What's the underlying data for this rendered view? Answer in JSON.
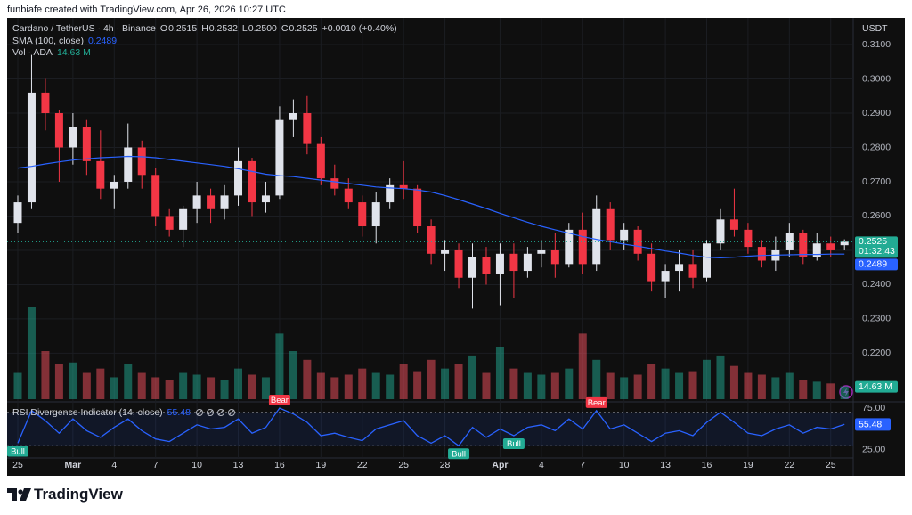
{
  "header": {
    "credit": "funbiafe created with TradingView.com, Apr 26, 2026 10:27 UTC"
  },
  "footer": {
    "brand": "TradingView"
  },
  "chart_data": [
    {
      "type": "candlestick",
      "title": "Cardano / TetherUS · 4h · Binance",
      "legend": [
        {
          "key": "O",
          "value": "0.2515"
        },
        {
          "key": "H",
          "value": "0.2532"
        },
        {
          "key": "L",
          "value": "0.2500"
        },
        {
          "key": "C",
          "value": "0.2525"
        }
      ],
      "change": "+0.0010 (+0.40%)",
      "currency": "USDT",
      "categories": [
        "25",
        null,
        null,
        null,
        "Mar",
        null,
        null,
        "4",
        null,
        null,
        "7",
        null,
        null,
        "10",
        null,
        null,
        "13",
        null,
        null,
        "16",
        null,
        null,
        "19",
        null,
        null,
        "22",
        null,
        null,
        "25",
        null,
        null,
        "28",
        null,
        null,
        null,
        "Apr",
        null,
        null,
        "4",
        null,
        null,
        "7",
        null,
        null,
        "10",
        null,
        null,
        "13",
        null,
        null,
        "16",
        null,
        null,
        "19",
        null,
        null,
        "22",
        null,
        null,
        "25",
        null
      ],
      "open": [
        0.258,
        0.264,
        0.296,
        0.29,
        0.28,
        0.286,
        0.276,
        0.268,
        0.27,
        0.28,
        0.272,
        0.26,
        0.256,
        0.262,
        0.266,
        0.262,
        0.266,
        0.276,
        0.264,
        0.266,
        0.288,
        0.29,
        0.281,
        0.271,
        0.268,
        0.264,
        0.257,
        0.264,
        0.269,
        0.268,
        0.257,
        0.249,
        0.25,
        0.242,
        0.248,
        0.243,
        0.249,
        0.244,
        0.249,
        0.25,
        0.246,
        0.256,
        0.246,
        0.262,
        0.253,
        0.256,
        0.249,
        0.241,
        0.244,
        0.246,
        0.242,
        0.252,
        0.259,
        0.256,
        0.251,
        0.247,
        0.25,
        0.255,
        0.248,
        0.252,
        0.2515
      ],
      "high": [
        0.266,
        0.307,
        0.3,
        0.291,
        0.29,
        0.288,
        0.285,
        0.272,
        0.287,
        0.282,
        0.274,
        0.262,
        0.263,
        0.27,
        0.268,
        0.269,
        0.28,
        0.277,
        0.27,
        0.292,
        0.294,
        0.295,
        0.283,
        0.275,
        0.271,
        0.266,
        0.267,
        0.271,
        0.276,
        0.269,
        0.259,
        0.253,
        0.252,
        0.252,
        0.251,
        0.252,
        0.252,
        0.251,
        0.253,
        0.255,
        0.258,
        0.261,
        0.266,
        0.264,
        0.258,
        0.257,
        0.252,
        0.246,
        0.25,
        0.25,
        0.253,
        0.262,
        0.268,
        0.258,
        0.253,
        0.254,
        0.258,
        0.256,
        0.255,
        0.254,
        0.2532
      ],
      "low": [
        0.255,
        0.262,
        0.285,
        0.27,
        0.275,
        0.272,
        0.265,
        0.262,
        0.268,
        0.268,
        0.257,
        0.254,
        0.251,
        0.258,
        0.258,
        0.259,
        0.263,
        0.26,
        0.261,
        0.265,
        0.283,
        0.278,
        0.269,
        0.266,
        0.262,
        0.254,
        0.252,
        0.262,
        0.265,
        0.255,
        0.246,
        0.244,
        0.239,
        0.233,
        0.24,
        0.234,
        0.236,
        0.242,
        0.245,
        0.242,
        0.245,
        0.243,
        0.244,
        0.25,
        0.25,
        0.247,
        0.238,
        0.236,
        0.238,
        0.239,
        0.241,
        0.25,
        0.254,
        0.249,
        0.245,
        0.244,
        0.248,
        0.246,
        0.247,
        0.248,
        0.25
      ],
      "close": [
        0.264,
        0.296,
        0.29,
        0.28,
        0.286,
        0.276,
        0.268,
        0.27,
        0.28,
        0.272,
        0.26,
        0.256,
        0.262,
        0.266,
        0.262,
        0.266,
        0.276,
        0.264,
        0.266,
        0.288,
        0.29,
        0.281,
        0.271,
        0.268,
        0.264,
        0.257,
        0.264,
        0.269,
        0.268,
        0.257,
        0.249,
        0.25,
        0.242,
        0.248,
        0.243,
        0.249,
        0.244,
        0.249,
        0.25,
        0.246,
        0.256,
        0.246,
        0.262,
        0.253,
        0.256,
        0.249,
        0.241,
        0.244,
        0.246,
        0.242,
        0.252,
        0.259,
        0.256,
        0.251,
        0.247,
        0.25,
        0.255,
        0.248,
        0.252,
        0.25,
        0.2525
      ],
      "up_color": "#e0e3eb",
      "down_color": "#f23645",
      "series": [
        {
          "name": "SMA (100, close)",
          "color": "#2962ff",
          "values": [
            0.274,
            0.2745,
            0.2752,
            0.2758,
            0.2763,
            0.2767,
            0.277,
            0.2772,
            0.2774,
            0.2773,
            0.277,
            0.2765,
            0.276,
            0.2755,
            0.275,
            0.2745,
            0.2738,
            0.273,
            0.2722,
            0.2718,
            0.2715,
            0.271,
            0.2705,
            0.27,
            0.2695,
            0.269,
            0.2685,
            0.2682,
            0.268,
            0.2676,
            0.267,
            0.266,
            0.2648,
            0.2635,
            0.2622,
            0.2608,
            0.2595,
            0.2582,
            0.257,
            0.256,
            0.255,
            0.254,
            0.2532,
            0.2525,
            0.2518,
            0.2512,
            0.2505,
            0.2498,
            0.2492,
            0.2485,
            0.248,
            0.2478,
            0.248,
            0.2483,
            0.2485,
            0.2486,
            0.2487,
            0.2488,
            0.2488,
            0.2489,
            0.2489
          ]
        }
      ],
      "last_price": {
        "value": 0.2525,
        "label": "0.2525"
      },
      "countdown": "01:32:43",
      "sma_last": {
        "value": 0.2489,
        "label": "0.2489"
      },
      "ylim": [
        0.2066,
        0.3178
      ],
      "yticks": [
        {
          "value": 0.22,
          "label": "0.2200"
        },
        {
          "value": 0.23,
          "label": "0.2300"
        },
        {
          "value": 0.24,
          "label": "0.2400"
        },
        0.25,
        {
          "value": 0.26,
          "label": "0.2600"
        },
        {
          "value": 0.27,
          "label": "0.2700"
        },
        {
          "value": 0.28,
          "label": "0.2800"
        },
        {
          "value": 0.29,
          "label": "0.2900"
        },
        {
          "value": 0.3,
          "label": "0.3000"
        },
        {
          "value": 0.31,
          "label": "0.3100"
        }
      ],
      "grid": true
    },
    {
      "type": "bar",
      "title": "Vol · ADA",
      "values": [
        30,
        105,
        55,
        40,
        42,
        30,
        35,
        25,
        40,
        30,
        25,
        22,
        30,
        28,
        25,
        22,
        35,
        28,
        25,
        75,
        55,
        45,
        30,
        25,
        28,
        35,
        30,
        28,
        40,
        32,
        45,
        35,
        40,
        50,
        30,
        60,
        35,
        30,
        28,
        30,
        35,
        75,
        45,
        30,
        25,
        28,
        40,
        35,
        30,
        32,
        45,
        50,
        38,
        30,
        28,
        25,
        30,
        22,
        20,
        18,
        14.63
      ],
      "value_labels": [
        null,
        null,
        null,
        null,
        null,
        null,
        null,
        null,
        null,
        null,
        null,
        null,
        null,
        null,
        null,
        null,
        null,
        null,
        null,
        null,
        null,
        null,
        null,
        null,
        null,
        null,
        null,
        null,
        null,
        null,
        null,
        null,
        null,
        null,
        null,
        null,
        null,
        null,
        null,
        null,
        null,
        null,
        null,
        null,
        null,
        null,
        null,
        null,
        null,
        null,
        null,
        null,
        null,
        null,
        null,
        null,
        null,
        null,
        null,
        null,
        "14.63 M"
      ],
      "up_color": "#22ab94",
      "down_color": "#f7525f",
      "ylim": [
        0,
        110
      ]
    },
    {
      "type": "line",
      "title": "RSI Divergence Indicator (14, close)",
      "color": "#2962ff",
      "values": [
        33,
        72,
        60,
        45,
        62,
        48,
        40,
        52,
        62,
        48,
        38,
        35,
        45,
        55,
        50,
        52,
        62,
        45,
        52,
        75,
        68,
        58,
        42,
        45,
        40,
        36,
        50,
        55,
        60,
        42,
        33,
        42,
        30,
        52,
        40,
        50,
        42,
        52,
        55,
        48,
        62,
        50,
        72,
        50,
        55,
        45,
        35,
        45,
        48,
        42,
        58,
        70,
        58,
        45,
        42,
        50,
        55,
        45,
        52,
        50,
        55.48
      ],
      "signals": [
        "Bull",
        null,
        null,
        null,
        null,
        null,
        null,
        null,
        null,
        null,
        null,
        null,
        null,
        null,
        null,
        null,
        null,
        null,
        null,
        "Bear",
        null,
        null,
        null,
        null,
        null,
        null,
        null,
        null,
        null,
        null,
        null,
        null,
        "Bull",
        null,
        null,
        null,
        "Bull",
        null,
        null,
        null,
        null,
        null,
        "Bear",
        null,
        null,
        null,
        null,
        null,
        null,
        null,
        null,
        null,
        null,
        null,
        null,
        null,
        null,
        null,
        null,
        null,
        null
      ],
      "bull_color": "#22ab94",
      "bear_color": "#f23645",
      "last": {
        "value": 55.48,
        "label": "55.48"
      },
      "levels": [
        30,
        50,
        70
      ],
      "ylim": [
        17.5,
        78.2
      ],
      "yticks": [
        {
          "value": 25,
          "label": "25.00"
        },
        {
          "value": 75,
          "label": "75.00"
        }
      ]
    }
  ]
}
